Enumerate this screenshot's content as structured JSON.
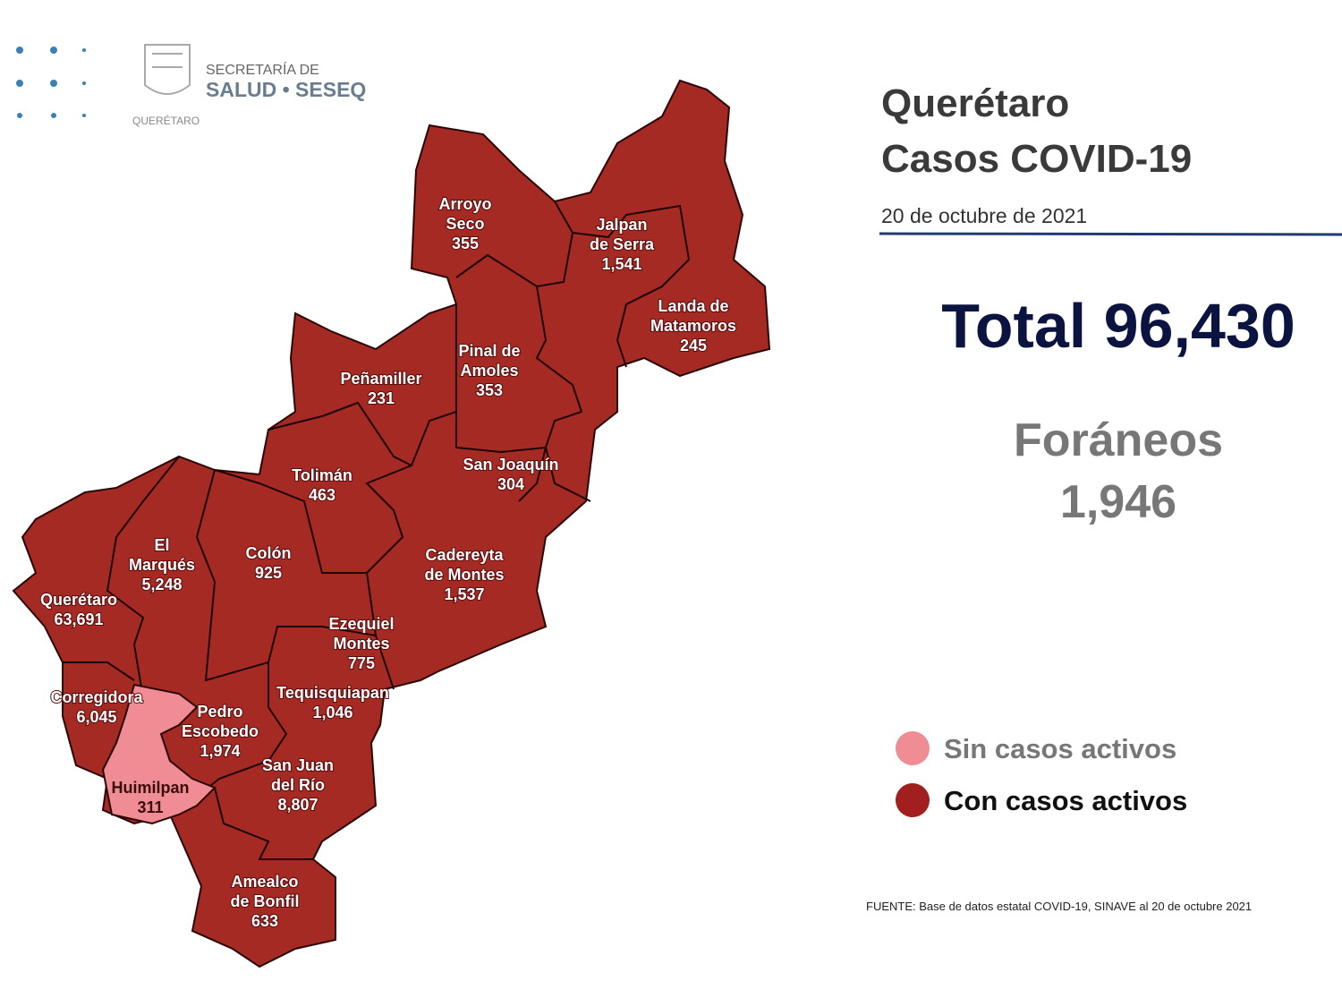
{
  "logo": {
    "line1": "SECRETARÍA DE",
    "line2": "SALUD • SESEQ",
    "line3": "QUERÉTARO"
  },
  "header": {
    "title": "Querétaro",
    "subtitle": "Casos COVID-19",
    "date": "20 de octubre de 2021"
  },
  "total": "Total 96,430",
  "foraneos": {
    "label": "Foráneos",
    "value": "1,946"
  },
  "legend": [
    {
      "label": "Sin casos activos",
      "color": "#f08c93"
    },
    {
      "label": "Con casos activos",
      "color": "#a11f1f"
    }
  ],
  "source": "FUENTE:  Base de datos estatal  COVID-19,  SINAVE  al 20 de octubre 2021",
  "municipalities": [
    {
      "name": [
        "Arroyo",
        "Seco"
      ],
      "cases": "355",
      "active": true
    },
    {
      "name": [
        "Jalpan",
        "de Serra"
      ],
      "cases": "1,541",
      "active": true
    },
    {
      "name": [
        "Landa de",
        "Matamoros"
      ],
      "cases": "245",
      "active": true
    },
    {
      "name": [
        "Pinal de",
        "Amoles"
      ],
      "cases": "353",
      "active": true
    },
    {
      "name": [
        "Peñamiller"
      ],
      "cases": "231",
      "active": true
    },
    {
      "name": [
        "San Joaquín"
      ],
      "cases": "304",
      "active": true
    },
    {
      "name": [
        "Tolimán"
      ],
      "cases": "463",
      "active": true
    },
    {
      "name": [
        "Cadereyta",
        "de Montes"
      ],
      "cases": "1,537",
      "active": true
    },
    {
      "name": [
        "El",
        "Marqués"
      ],
      "cases": "5,248",
      "active": true
    },
    {
      "name": [
        "Colón"
      ],
      "cases": "925",
      "active": true
    },
    {
      "name": [
        "Querétaro"
      ],
      "cases": "63,691",
      "active": true
    },
    {
      "name": [
        "Ezequiel",
        "Montes"
      ],
      "cases": "775",
      "active": true
    },
    {
      "name": [
        "Tequisquiapan"
      ],
      "cases": "1,046",
      "active": true
    },
    {
      "name": [
        "Corregidora"
      ],
      "cases": "6,045",
      "active": true
    },
    {
      "name": [
        "Pedro",
        "Escobedo"
      ],
      "cases": "1,974",
      "active": true
    },
    {
      "name": [
        "San Juan",
        "del Río"
      ],
      "cases": "8,807",
      "active": true
    },
    {
      "name": [
        "Huimilpan"
      ],
      "cases": "311",
      "active": false
    },
    {
      "name": [
        "Amealco",
        "de Bonfil"
      ],
      "cases": "633",
      "active": true
    }
  ]
}
